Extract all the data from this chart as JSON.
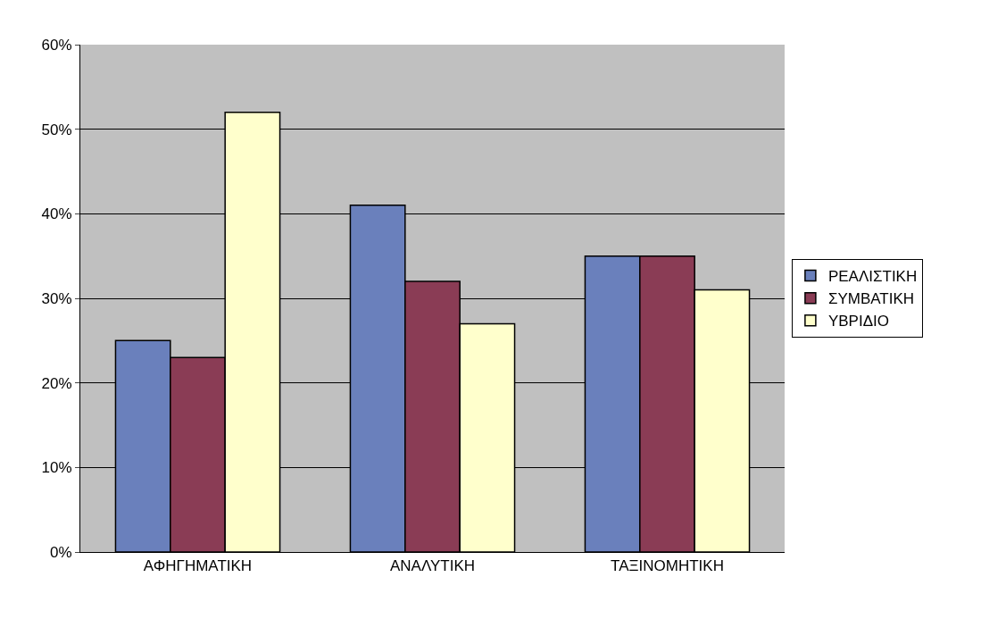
{
  "chart_data": {
    "type": "bar",
    "categories": [
      "ΑΦΗΓΗΜΑΤΙΚΗ",
      "ΑΝΑΛΥΤΙΚΗ",
      "ΤΑΞΙΝΟΜΗΤΙΚΗ"
    ],
    "series": [
      {
        "name": "ΡΕΑΛΙΣΤΙΚΗ",
        "color": "#6a80bc",
        "values": [
          25,
          41,
          35
        ]
      },
      {
        "name": "ΣΥΜΒΑΤΙΚΗ",
        "color": "#8a3c55",
        "values": [
          23,
          32,
          35
        ]
      },
      {
        "name": "ΥΒΡΙΔΙΟ",
        "color": "#ffffcc",
        "values": [
          52,
          27,
          31
        ]
      }
    ],
    "ylim": [
      0,
      60
    ],
    "yticks": [
      {
        "value": 0,
        "label": "0%"
      },
      {
        "value": 10,
        "label": "10%"
      },
      {
        "value": 20,
        "label": "20%"
      },
      {
        "value": 30,
        "label": "30%"
      },
      {
        "value": 40,
        "label": "40%"
      },
      {
        "value": 50,
        "label": "50%"
      },
      {
        "value": 60,
        "label": "60%"
      }
    ],
    "grid": "y",
    "legend": "right"
  }
}
